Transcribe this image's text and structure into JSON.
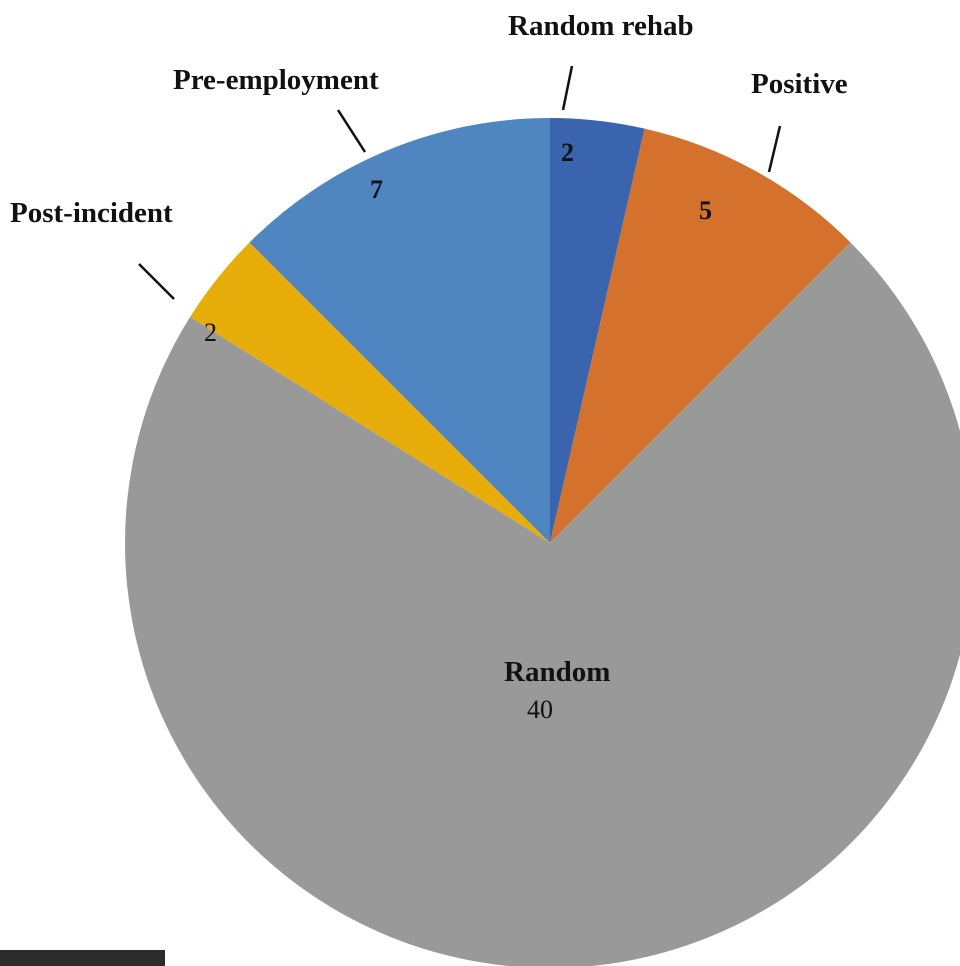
{
  "chart_data": {
    "type": "pie",
    "title": "",
    "categories": [
      "Random rehab",
      "Positive",
      "Random",
      "Post-incident",
      "Pre-employment"
    ],
    "values": [
      2,
      5,
      40,
      2,
      7
    ],
    "colors": [
      "#3a64ae",
      "#d4712c",
      "#999999",
      "#e7ad0a",
      "#4f86bf"
    ],
    "legend": "none",
    "labels": [
      {
        "name": "Random rehab",
        "value": "2"
      },
      {
        "name": "Positive",
        "value": "5"
      },
      {
        "name": "Random",
        "value": "40"
      },
      {
        "name": "Post-incident",
        "value": "2"
      },
      {
        "name": "Pre-employment",
        "value": "7"
      }
    ]
  }
}
